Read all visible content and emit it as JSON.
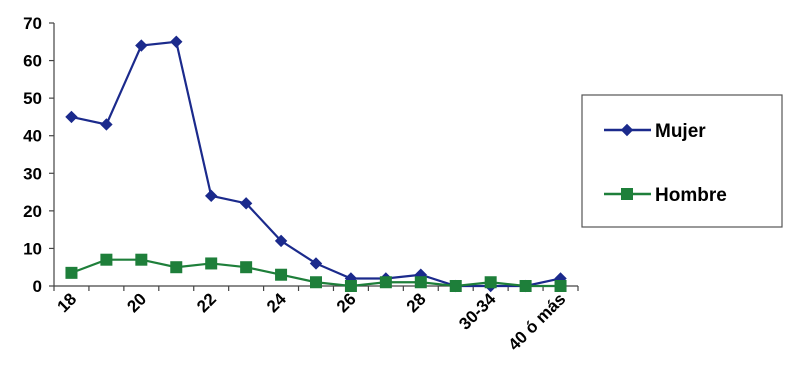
{
  "chart_data": {
    "type": "line",
    "categories": [
      "18",
      "19",
      "20",
      "21",
      "22",
      "23",
      "24",
      "25",
      "26",
      "27",
      "28",
      "29",
      "30-34",
      "35-39",
      "40 ó más"
    ],
    "tick_labels": [
      "18",
      "",
      "20",
      "",
      "22",
      "",
      "24",
      "",
      "26",
      "",
      "28",
      "",
      "30-34",
      "",
      "40 ó más"
    ],
    "series": [
      {
        "name": "Mujer",
        "color": "#1b2a8c",
        "marker": "diamond",
        "values": [
          45,
          43,
          64,
          65,
          24,
          22,
          12,
          6,
          2,
          2,
          3,
          0,
          0,
          0,
          2
        ]
      },
      {
        "name": "Hombre",
        "color": "#1e7f3a",
        "marker": "square",
        "values": [
          3.5,
          7,
          7,
          5,
          6,
          5,
          3,
          1,
          0,
          1,
          1,
          0,
          1,
          0,
          0
        ]
      }
    ],
    "ylim": [
      0,
      70
    ],
    "yticks": [
      0,
      10,
      20,
      30,
      40,
      50,
      60,
      70
    ],
    "title": "",
    "xlabel": "",
    "ylabel": "",
    "grid": false,
    "legend_position": "right"
  }
}
